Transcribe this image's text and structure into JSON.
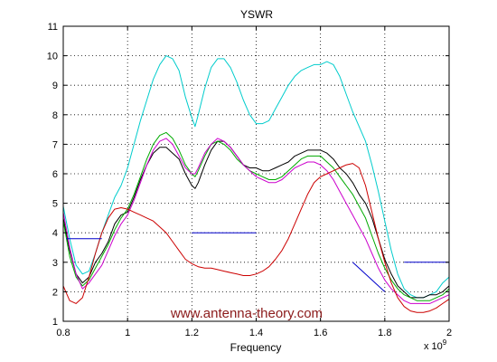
{
  "chart_data": {
    "type": "line",
    "title": "YSWR",
    "xlabel": "Frequency",
    "ylabel": "",
    "x_multiplier": "x 10",
    "x_multiplier_exp": "9",
    "xlim": [
      0.8,
      2.0
    ],
    "ylim": [
      1,
      11
    ],
    "x_ticks": [
      "0.8",
      "1",
      "1.2",
      "1.4",
      "1.6",
      "1.8",
      "2"
    ],
    "y_ticks": [
      "1",
      "2",
      "3",
      "4",
      "5",
      "6",
      "7",
      "8",
      "9",
      "10",
      "11"
    ],
    "grid": true,
    "annotation": "www.antenna-theory.com",
    "series": [
      {
        "color": "#00cccc",
        "points": [
          [
            0.8,
            4.9
          ],
          [
            0.82,
            3.8
          ],
          [
            0.84,
            2.9
          ],
          [
            0.86,
            2.6
          ],
          [
            0.88,
            2.7
          ],
          [
            0.9,
            3.3
          ],
          [
            0.92,
            4.0
          ],
          [
            0.94,
            4.6
          ],
          [
            0.96,
            5.2
          ],
          [
            0.98,
            5.6
          ],
          [
            1.0,
            6.2
          ],
          [
            1.02,
            7.0
          ],
          [
            1.04,
            7.8
          ],
          [
            1.06,
            8.5
          ],
          [
            1.08,
            9.2
          ],
          [
            1.1,
            9.7
          ],
          [
            1.12,
            10.0
          ],
          [
            1.14,
            9.9
          ],
          [
            1.16,
            9.5
          ],
          [
            1.18,
            8.6
          ],
          [
            1.2,
            7.9
          ],
          [
            1.21,
            7.6
          ],
          [
            1.22,
            8.0
          ],
          [
            1.24,
            8.9
          ],
          [
            1.26,
            9.6
          ],
          [
            1.28,
            9.9
          ],
          [
            1.3,
            9.9
          ],
          [
            1.32,
            9.6
          ],
          [
            1.34,
            9.1
          ],
          [
            1.36,
            8.5
          ],
          [
            1.38,
            8.0
          ],
          [
            1.4,
            7.7
          ],
          [
            1.42,
            7.7
          ],
          [
            1.44,
            7.8
          ],
          [
            1.46,
            8.2
          ],
          [
            1.48,
            8.6
          ],
          [
            1.5,
            9.0
          ],
          [
            1.52,
            9.3
          ],
          [
            1.54,
            9.5
          ],
          [
            1.56,
            9.6
          ],
          [
            1.58,
            9.7
          ],
          [
            1.6,
            9.7
          ],
          [
            1.62,
            9.8
          ],
          [
            1.64,
            9.7
          ],
          [
            1.66,
            9.3
          ],
          [
            1.68,
            8.7
          ],
          [
            1.7,
            8.1
          ],
          [
            1.72,
            7.6
          ],
          [
            1.74,
            7.1
          ],
          [
            1.76,
            6.3
          ],
          [
            1.78,
            5.4
          ],
          [
            1.8,
            4.4
          ],
          [
            1.82,
            3.4
          ],
          [
            1.84,
            2.6
          ],
          [
            1.86,
            2.1
          ],
          [
            1.88,
            1.9
          ],
          [
            1.9,
            1.8
          ],
          [
            1.92,
            1.8
          ],
          [
            1.94,
            1.9
          ],
          [
            1.96,
            2.0
          ],
          [
            1.98,
            2.3
          ],
          [
            2.0,
            2.5
          ]
        ]
      },
      {
        "color": "#000000",
        "points": [
          [
            0.8,
            4.5
          ],
          [
            0.82,
            3.4
          ],
          [
            0.84,
            2.6
          ],
          [
            0.86,
            2.3
          ],
          [
            0.88,
            2.5
          ],
          [
            0.9,
            3.0
          ],
          [
            0.92,
            3.3
          ],
          [
            0.94,
            3.7
          ],
          [
            0.96,
            4.3
          ],
          [
            0.98,
            4.6
          ],
          [
            1.0,
            4.7
          ],
          [
            1.02,
            5.2
          ],
          [
            1.04,
            5.8
          ],
          [
            1.06,
            6.3
          ],
          [
            1.08,
            6.7
          ],
          [
            1.1,
            6.9
          ],
          [
            1.12,
            6.9
          ],
          [
            1.14,
            6.7
          ],
          [
            1.16,
            6.5
          ],
          [
            1.18,
            6.0
          ],
          [
            1.2,
            5.6
          ],
          [
            1.21,
            5.5
          ],
          [
            1.22,
            5.7
          ],
          [
            1.24,
            6.3
          ],
          [
            1.26,
            6.8
          ],
          [
            1.28,
            7.1
          ],
          [
            1.3,
            7.1
          ],
          [
            1.32,
            6.9
          ],
          [
            1.34,
            6.6
          ],
          [
            1.36,
            6.3
          ],
          [
            1.38,
            6.2
          ],
          [
            1.4,
            6.2
          ],
          [
            1.42,
            6.1
          ],
          [
            1.44,
            6.1
          ],
          [
            1.46,
            6.2
          ],
          [
            1.48,
            6.3
          ],
          [
            1.5,
            6.4
          ],
          [
            1.52,
            6.6
          ],
          [
            1.54,
            6.7
          ],
          [
            1.56,
            6.8
          ],
          [
            1.58,
            6.8
          ],
          [
            1.6,
            6.8
          ],
          [
            1.62,
            6.7
          ],
          [
            1.64,
            6.5
          ],
          [
            1.66,
            6.2
          ],
          [
            1.68,
            6.0
          ],
          [
            1.7,
            5.7
          ],
          [
            1.72,
            5.3
          ],
          [
            1.74,
            5.0
          ],
          [
            1.76,
            4.5
          ],
          [
            1.78,
            3.8
          ],
          [
            1.8,
            3.1
          ],
          [
            1.82,
            2.6
          ],
          [
            1.84,
            2.2
          ],
          [
            1.86,
            2.0
          ],
          [
            1.88,
            1.8
          ],
          [
            1.9,
            1.8
          ],
          [
            1.92,
            1.8
          ],
          [
            1.94,
            1.9
          ],
          [
            1.96,
            1.9
          ],
          [
            1.98,
            2.0
          ],
          [
            2.0,
            2.2
          ]
        ]
      },
      {
        "color": "#00aa00",
        "points": [
          [
            0.8,
            4.4
          ],
          [
            0.82,
            3.2
          ],
          [
            0.84,
            2.5
          ],
          [
            0.86,
            2.2
          ],
          [
            0.88,
            2.4
          ],
          [
            0.9,
            2.8
          ],
          [
            0.92,
            3.2
          ],
          [
            0.94,
            3.6
          ],
          [
            0.96,
            4.1
          ],
          [
            0.98,
            4.5
          ],
          [
            1.0,
            4.8
          ],
          [
            1.02,
            5.3
          ],
          [
            1.04,
            5.9
          ],
          [
            1.06,
            6.5
          ],
          [
            1.08,
            7.0
          ],
          [
            1.1,
            7.3
          ],
          [
            1.12,
            7.4
          ],
          [
            1.14,
            7.2
          ],
          [
            1.16,
            6.8
          ],
          [
            1.18,
            6.3
          ],
          [
            1.2,
            6.0
          ],
          [
            1.21,
            5.9
          ],
          [
            1.22,
            6.1
          ],
          [
            1.24,
            6.6
          ],
          [
            1.26,
            7.0
          ],
          [
            1.28,
            7.1
          ],
          [
            1.3,
            7.0
          ],
          [
            1.32,
            6.8
          ],
          [
            1.34,
            6.5
          ],
          [
            1.36,
            6.3
          ],
          [
            1.38,
            6.1
          ],
          [
            1.4,
            6.0
          ],
          [
            1.42,
            5.9
          ],
          [
            1.44,
            5.8
          ],
          [
            1.46,
            5.8
          ],
          [
            1.48,
            5.9
          ],
          [
            1.5,
            6.1
          ],
          [
            1.52,
            6.3
          ],
          [
            1.54,
            6.5
          ],
          [
            1.56,
            6.6
          ],
          [
            1.58,
            6.6
          ],
          [
            1.6,
            6.6
          ],
          [
            1.62,
            6.4
          ],
          [
            1.64,
            6.2
          ],
          [
            1.66,
            5.9
          ],
          [
            1.68,
            5.6
          ],
          [
            1.7,
            5.3
          ],
          [
            1.72,
            4.9
          ],
          [
            1.74,
            4.5
          ],
          [
            1.76,
            3.9
          ],
          [
            1.78,
            3.3
          ],
          [
            1.8,
            2.8
          ],
          [
            1.82,
            2.4
          ],
          [
            1.84,
            2.1
          ],
          [
            1.86,
            1.9
          ],
          [
            1.88,
            1.8
          ],
          [
            1.9,
            1.7
          ],
          [
            1.92,
            1.7
          ],
          [
            1.94,
            1.7
          ],
          [
            1.96,
            1.8
          ],
          [
            1.98,
            1.9
          ],
          [
            2.0,
            2.1
          ]
        ]
      },
      {
        "color": "#cc00cc",
        "points": [
          [
            0.8,
            4.7
          ],
          [
            0.82,
            3.5
          ],
          [
            0.84,
            2.6
          ],
          [
            0.86,
            2.1
          ],
          [
            0.88,
            2.3
          ],
          [
            0.9,
            2.6
          ],
          [
            0.92,
            2.9
          ],
          [
            0.94,
            3.4
          ],
          [
            0.96,
            3.9
          ],
          [
            0.98,
            4.3
          ],
          [
            1.0,
            4.6
          ],
          [
            1.02,
            5.1
          ],
          [
            1.04,
            5.7
          ],
          [
            1.06,
            6.3
          ],
          [
            1.08,
            6.8
          ],
          [
            1.1,
            7.1
          ],
          [
            1.12,
            7.2
          ],
          [
            1.14,
            7.0
          ],
          [
            1.16,
            6.6
          ],
          [
            1.18,
            6.2
          ],
          [
            1.2,
            6.0
          ],
          [
            1.21,
            6.0
          ],
          [
            1.22,
            6.2
          ],
          [
            1.24,
            6.7
          ],
          [
            1.26,
            7.0
          ],
          [
            1.28,
            7.2
          ],
          [
            1.3,
            7.1
          ],
          [
            1.32,
            6.9
          ],
          [
            1.34,
            6.6
          ],
          [
            1.36,
            6.3
          ],
          [
            1.38,
            6.1
          ],
          [
            1.4,
            5.9
          ],
          [
            1.42,
            5.8
          ],
          [
            1.44,
            5.7
          ],
          [
            1.46,
            5.7
          ],
          [
            1.48,
            5.8
          ],
          [
            1.5,
            6.0
          ],
          [
            1.52,
            6.2
          ],
          [
            1.54,
            6.3
          ],
          [
            1.56,
            6.4
          ],
          [
            1.58,
            6.4
          ],
          [
            1.6,
            6.3
          ],
          [
            1.62,
            6.1
          ],
          [
            1.64,
            5.8
          ],
          [
            1.66,
            5.4
          ],
          [
            1.68,
            5.0
          ],
          [
            1.7,
            4.6
          ],
          [
            1.72,
            4.2
          ],
          [
            1.74,
            3.8
          ],
          [
            1.76,
            3.3
          ],
          [
            1.78,
            2.8
          ],
          [
            1.8,
            2.4
          ],
          [
            1.82,
            2.1
          ],
          [
            1.84,
            1.9
          ],
          [
            1.86,
            1.7
          ],
          [
            1.88,
            1.6
          ],
          [
            1.9,
            1.6
          ],
          [
            1.92,
            1.6
          ],
          [
            1.94,
            1.6
          ],
          [
            1.96,
            1.7
          ],
          [
            1.98,
            1.8
          ],
          [
            2.0,
            1.9
          ]
        ]
      },
      {
        "color": "#cc0000",
        "points": [
          [
            0.8,
            2.2
          ],
          [
            0.82,
            1.7
          ],
          [
            0.84,
            1.6
          ],
          [
            0.86,
            1.8
          ],
          [
            0.88,
            2.5
          ],
          [
            0.9,
            3.3
          ],
          [
            0.92,
            4.0
          ],
          [
            0.94,
            4.5
          ],
          [
            0.96,
            4.8
          ],
          [
            0.98,
            4.85
          ],
          [
            1.0,
            4.8
          ],
          [
            1.02,
            4.7
          ],
          [
            1.04,
            4.6
          ],
          [
            1.06,
            4.5
          ],
          [
            1.08,
            4.4
          ],
          [
            1.1,
            4.2
          ],
          [
            1.12,
            4.0
          ],
          [
            1.14,
            3.7
          ],
          [
            1.16,
            3.4
          ],
          [
            1.18,
            3.1
          ],
          [
            1.2,
            2.95
          ],
          [
            1.22,
            2.85
          ],
          [
            1.24,
            2.8
          ],
          [
            1.26,
            2.8
          ],
          [
            1.28,
            2.75
          ],
          [
            1.3,
            2.7
          ],
          [
            1.32,
            2.65
          ],
          [
            1.34,
            2.6
          ],
          [
            1.36,
            2.55
          ],
          [
            1.38,
            2.55
          ],
          [
            1.4,
            2.6
          ],
          [
            1.42,
            2.7
          ],
          [
            1.44,
            2.85
          ],
          [
            1.46,
            3.1
          ],
          [
            1.48,
            3.4
          ],
          [
            1.5,
            3.8
          ],
          [
            1.52,
            4.3
          ],
          [
            1.54,
            4.8
          ],
          [
            1.56,
            5.3
          ],
          [
            1.58,
            5.7
          ],
          [
            1.6,
            5.9
          ],
          [
            1.62,
            6.0
          ],
          [
            1.64,
            6.1
          ],
          [
            1.66,
            6.2
          ],
          [
            1.68,
            6.3
          ],
          [
            1.7,
            6.35
          ],
          [
            1.72,
            6.2
          ],
          [
            1.74,
            5.6
          ],
          [
            1.76,
            4.7
          ],
          [
            1.78,
            3.8
          ],
          [
            1.8,
            3.0
          ],
          [
            1.82,
            2.3
          ],
          [
            1.84,
            1.8
          ],
          [
            1.86,
            1.5
          ],
          [
            1.88,
            1.35
          ],
          [
            1.9,
            1.3
          ],
          [
            1.92,
            1.3
          ],
          [
            1.94,
            1.35
          ],
          [
            1.96,
            1.45
          ],
          [
            1.98,
            1.6
          ],
          [
            2.0,
            1.75
          ]
        ]
      },
      {
        "color": "#0000cc",
        "segments": [
          [
            [
              0.81,
              3.8
            ],
            [
              0.92,
              3.8
            ]
          ],
          [
            [
              1.2,
              4.0
            ],
            [
              1.4,
              4.0
            ]
          ],
          [
            [
              1.7,
              3.0
            ],
            [
              1.8,
              2.0
            ]
          ],
          [
            [
              1.86,
              3.0
            ],
            [
              2.0,
              3.0
            ]
          ]
        ]
      }
    ]
  }
}
